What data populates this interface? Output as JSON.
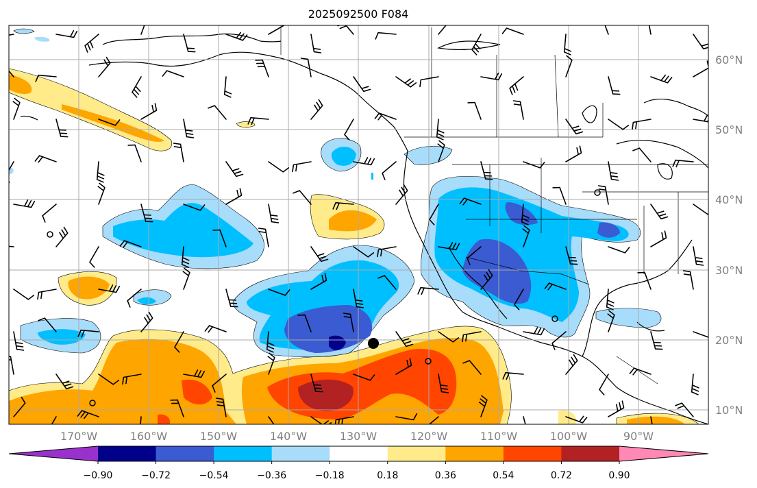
{
  "title": "2025092500 F084",
  "lat_labels": [
    "60°N",
    "50°N",
    "40°N",
    "30°N",
    "20°N",
    "10°N"
  ],
  "lon_labels": [
    "170°W",
    "160°W",
    "150°W",
    "140°W",
    "130°W",
    "120°W",
    "110°W",
    "100°W",
    "90°W"
  ],
  "colorbar": {
    "ticks": [
      "−0.90",
      "−0.72",
      "−0.54",
      "−0.36",
      "−0.18",
      "0.18",
      "0.36",
      "0.54",
      "0.72",
      "0.90"
    ],
    "colors": [
      "#9932cc",
      "#00008b",
      "#3a5bd1",
      "#00bfff",
      "#a8dcfb",
      "#ffffff",
      "#ffeb8a",
      "#ffa500",
      "#ff4500",
      "#b22222",
      "#ff88b4"
    ]
  },
  "colors": {
    "land_line": "#000000",
    "grid": "#a9a9a9"
  }
}
